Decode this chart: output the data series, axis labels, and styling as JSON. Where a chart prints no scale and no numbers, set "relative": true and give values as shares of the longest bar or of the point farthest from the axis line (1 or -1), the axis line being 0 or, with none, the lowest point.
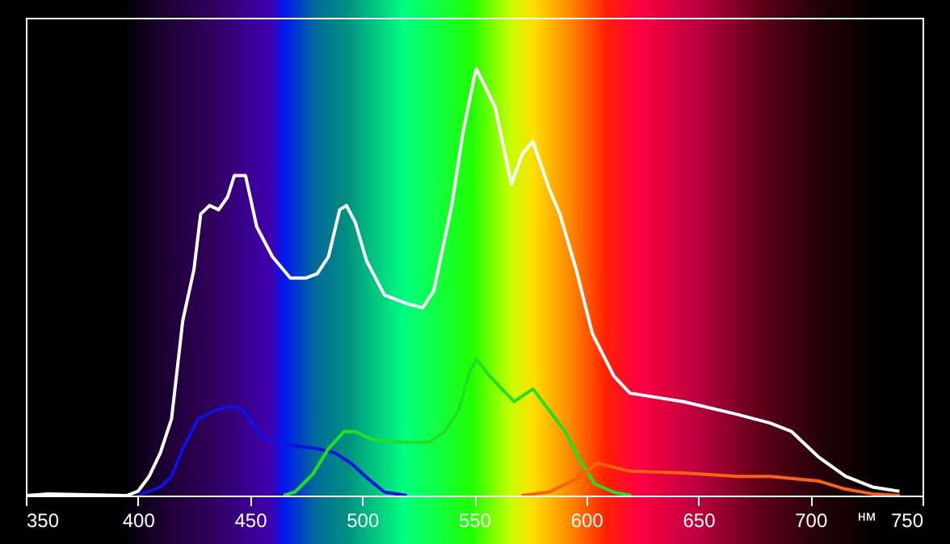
{
  "chart_data": {
    "type": "line",
    "xlabel": "нм",
    "relative": true,
    "xlim": [
      350,
      750
    ],
    "xticks": [
      350,
      400,
      450,
      500,
      550,
      600,
      650,
      700,
      750
    ],
    "grid": false,
    "marker": "none",
    "line_style": "solid",
    "series": [
      {
        "color": "#ffffff",
        "x": [
          350,
          360,
          395,
          400,
          405,
          410,
          415,
          420,
          425,
          428,
          432,
          436,
          440,
          443,
          448,
          453,
          460,
          468,
          475,
          480,
          485,
          490,
          493,
          497,
          502,
          510,
          520,
          527,
          532,
          540,
          545,
          550,
          551,
          559.4,
          566.6,
          571.4,
          576.2,
          583.4,
          588.2,
          595.5,
          602.7,
          612.3,
          619.5,
          643.5,
          667.6,
          682,
          691.6,
          703.7,
          715.7,
          727.7,
          739.7
        ],
        "values": [
          0,
          0.004,
          0,
          0.01,
          0.045,
          0.1,
          0.18,
          0.41,
          0.53,
          0.66,
          0.68,
          0.67,
          0.7,
          0.75,
          0.75,
          0.63,
          0.56,
          0.51,
          0.51,
          0.52,
          0.56,
          0.67,
          0.68,
          0.64,
          0.55,
          0.47,
          0.45,
          0.44,
          0.48,
          0.68,
          0.85,
          0.98,
          1,
          0.91,
          0.73,
          0.8,
          0.83,
          0.72,
          0.66,
          0.53,
          0.38,
          0.28,
          0.24,
          0.22,
          0.19,
          0.17,
          0.15,
          0.09,
          0.045,
          0.02,
          0.01
        ]
      },
      {
        "color": "#1010e8",
        "x": [
          400,
          410,
          415,
          420,
          427,
          435,
          442,
          447,
          455,
          465,
          480,
          488,
          495,
          503,
          510,
          520
        ],
        "values": [
          0,
          0.02,
          0.045,
          0.11,
          0.18,
          0.2,
          0.21,
          0.2,
          0.14,
          0.12,
          0.11,
          0.1,
          0.076,
          0.038,
          0.008,
          0
        ]
      },
      {
        "color": "#20e020",
        "x": [
          465,
          470,
          478,
          485,
          492,
          497,
          505,
          520,
          530,
          537,
          543,
          548,
          551,
          556.9,
          567.8,
          576.2,
          583.4,
          590.6,
          597.9,
          603.9,
          612.3,
          620
        ],
        "values": [
          0,
          0.008,
          0.05,
          0.11,
          0.15,
          0.15,
          0.13,
          0.125,
          0.125,
          0.15,
          0.2,
          0.29,
          0.32,
          0.28,
          0.22,
          0.25,
          0.2,
          0.15,
          0.076,
          0.027,
          0.008,
          0
        ]
      },
      {
        "color": "#ff6010",
        "x": [
          571,
          583.4,
          595.5,
          605,
          619.5,
          643.5,
          667.6,
          682,
          703.7,
          715.7,
          727.7,
          740
        ],
        "values": [
          0,
          0.008,
          0.038,
          0.076,
          0.057,
          0.053,
          0.045,
          0.045,
          0.034,
          0.015,
          0.004,
          0
        ]
      }
    ]
  }
}
